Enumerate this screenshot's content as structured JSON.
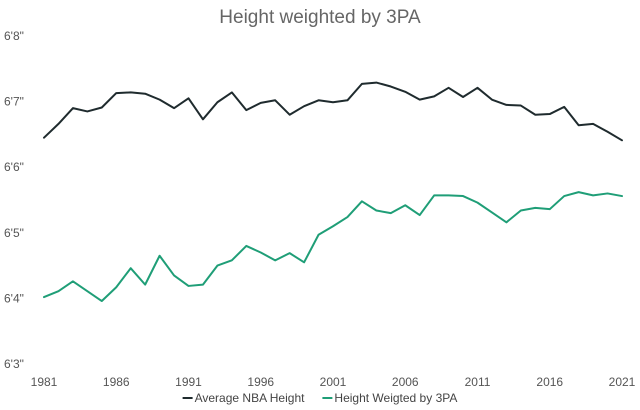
{
  "chart_data": {
    "type": "line",
    "title": "Height weighted by 3PA",
    "xlabel": "",
    "ylabel": "",
    "x": [
      1981,
      1982,
      1983,
      1984,
      1985,
      1986,
      1987,
      1988,
      1989,
      1990,
      1991,
      1992,
      1993,
      1994,
      1995,
      1996,
      1997,
      1998,
      1999,
      2000,
      2001,
      2002,
      2003,
      2004,
      2005,
      2006,
      2007,
      2008,
      2009,
      2010,
      2011,
      2012,
      2013,
      2014,
      2015,
      2016,
      2017,
      2018,
      2019,
      2020,
      2021
    ],
    "xlim": [
      1981,
      2021
    ],
    "x_ticks": [
      1981,
      1986,
      1991,
      1996,
      2001,
      2006,
      2011,
      2016,
      2021
    ],
    "x_tick_labels": [
      "1981",
      "1986",
      "1991",
      "1996",
      "2001",
      "2006",
      "2011",
      "2016",
      "2021"
    ],
    "ylim": [
      75,
      80
    ],
    "y_ticks": [
      75,
      76,
      77,
      78,
      79,
      80
    ],
    "y_tick_labels": [
      "6'3\"",
      "6'4\"",
      "6'5\"",
      "6'6\"",
      "6'7\"",
      "6'8\""
    ],
    "grid": false,
    "legend_position": "bottom",
    "series": [
      {
        "name": "Average NBA Height",
        "color": "#1f2b2e",
        "values": [
          78.45,
          78.66,
          78.9,
          78.85,
          78.91,
          79.13,
          79.14,
          79.12,
          79.03,
          78.9,
          79.05,
          78.73,
          78.99,
          79.14,
          78.87,
          78.98,
          79.02,
          78.8,
          78.93,
          79.02,
          78.99,
          79.02,
          79.27,
          79.29,
          79.23,
          79.15,
          79.03,
          79.08,
          79.21,
          79.07,
          79.21,
          79.03,
          78.95,
          78.94,
          78.8,
          78.81,
          78.92,
          78.64,
          78.66,
          78.54,
          78.41
        ]
      },
      {
        "name": "Height Weigted by 3PA",
        "color": "#1f9e77",
        "values": [
          76.02,
          76.11,
          76.26,
          76.11,
          75.96,
          76.17,
          76.46,
          76.21,
          76.65,
          76.35,
          76.19,
          76.21,
          76.5,
          76.58,
          76.8,
          76.7,
          76.58,
          76.69,
          76.55,
          76.97,
          77.1,
          77.24,
          77.48,
          77.34,
          77.3,
          77.42,
          77.27,
          77.57,
          77.57,
          77.56,
          77.46,
          77.31,
          77.16,
          77.34,
          77.38,
          77.36,
          77.56,
          77.62,
          77.57,
          77.6,
          77.56
        ]
      }
    ]
  }
}
